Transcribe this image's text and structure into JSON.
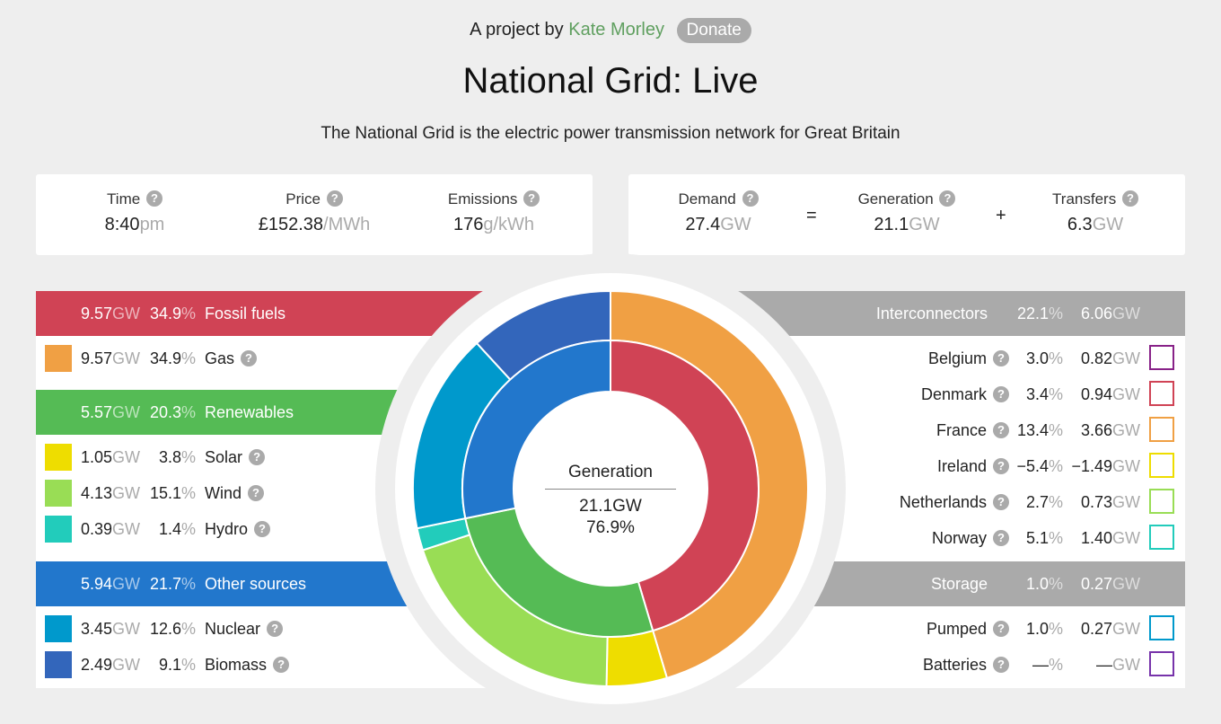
{
  "header": {
    "byline": "A project by",
    "author": "Kate Morley",
    "donate_label": "Donate",
    "title": "National Grid: Live",
    "subtitle": "The National Grid is the electric power transmission network for Great Britain"
  },
  "stats_left": {
    "time": {
      "label": "Time",
      "value": "8:40",
      "unit": "pm"
    },
    "price": {
      "label": "Price",
      "value": "£152.38",
      "unit": "/MWh"
    },
    "emissions": {
      "label": "Emissions",
      "value": "176",
      "unit": "g/kWh"
    }
  },
  "stats_right": {
    "demand": {
      "label": "Demand",
      "value": "27.4",
      "unit": "GW"
    },
    "equals": "=",
    "generation": {
      "label": "Generation",
      "value": "21.1",
      "unit": "GW"
    },
    "plus": "+",
    "transfers": {
      "label": "Transfers",
      "value": "6.3",
      "unit": "GW"
    }
  },
  "help_glyph": "?",
  "gw_unit": "GW",
  "pct_unit": "%",
  "left": {
    "fossil": {
      "name": "Fossil fuels",
      "gw": "9.57",
      "pct": "34.9",
      "color": "#d04355"
    },
    "gas": {
      "name": "Gas",
      "gw": "9.57",
      "pct": "34.9",
      "color": "#f0a044"
    },
    "renewables": {
      "name": "Renewables",
      "gw": "5.57",
      "pct": "20.3",
      "color": "#55bb55"
    },
    "solar": {
      "name": "Solar",
      "gw": "1.05",
      "pct": "3.8",
      "color": "#eedd00"
    },
    "wind": {
      "name": "Wind",
      "gw": "4.13",
      "pct": "15.1",
      "color": "#99dd55"
    },
    "hydro": {
      "name": "Hydro",
      "gw": "0.39",
      "pct": "1.4",
      "color": "#22ccbb"
    },
    "other": {
      "name": "Other sources",
      "gw": "5.94",
      "pct": "21.7",
      "color": "#2277cc"
    },
    "nuclear": {
      "name": "Nuclear",
      "gw": "3.45",
      "pct": "12.6",
      "color": "#0099cc"
    },
    "biomass": {
      "name": "Biomass",
      "gw": "2.49",
      "pct": "9.1",
      "color": "#3366bb"
    }
  },
  "right": {
    "interconnectors": {
      "name": "Interconnectors",
      "pct": "22.1",
      "gw": "6.06"
    },
    "belgium": {
      "name": "Belgium",
      "pct": "3.0",
      "gw": "0.82",
      "color": "#882288"
    },
    "denmark": {
      "name": "Denmark",
      "pct": "3.4",
      "gw": "0.94",
      "color": "#d04355"
    },
    "france": {
      "name": "France",
      "pct": "13.4",
      "gw": "3.66",
      "color": "#f0a044"
    },
    "ireland": {
      "name": "Ireland",
      "pct": "−5.4",
      "gw": "−1.49",
      "color": "#eedd00"
    },
    "netherlands": {
      "name": "Netherlands",
      "pct": "2.7",
      "gw": "0.73",
      "color": "#99dd55"
    },
    "norway": {
      "name": "Norway",
      "pct": "5.1",
      "gw": "1.40",
      "color": "#22ccbb"
    },
    "storage": {
      "name": "Storage",
      "pct": "1.0",
      "gw": "0.27"
    },
    "pumped": {
      "name": "Pumped",
      "pct": "1.0",
      "gw": "0.27",
      "color": "#0099cc"
    },
    "batteries": {
      "name": "Batteries",
      "pct": "—",
      "gw": "—",
      "color": "#7733aa"
    }
  },
  "donut": {
    "label": "Generation",
    "gw": "21.1GW",
    "pct": "76.9%"
  },
  "chart_data": {
    "type": "pie",
    "outer": [
      {
        "name": "Gas",
        "value": 34.9,
        "color": "#f0a044"
      },
      {
        "name": "Solar",
        "value": 3.8,
        "color": "#eedd00"
      },
      {
        "name": "Wind",
        "value": 15.1,
        "color": "#99dd55"
      },
      {
        "name": "Hydro",
        "value": 1.4,
        "color": "#22ccbb"
      },
      {
        "name": "Nuclear",
        "value": 12.6,
        "color": "#0099cc"
      },
      {
        "name": "Biomass",
        "value": 9.1,
        "color": "#3366bb"
      }
    ],
    "inner": [
      {
        "name": "Fossil fuels",
        "value": 34.9,
        "color": "#d04355"
      },
      {
        "name": "Renewables",
        "value": 20.3,
        "color": "#55bb55"
      },
      {
        "name": "Other sources",
        "value": 21.7,
        "color": "#2277cc"
      }
    ]
  }
}
